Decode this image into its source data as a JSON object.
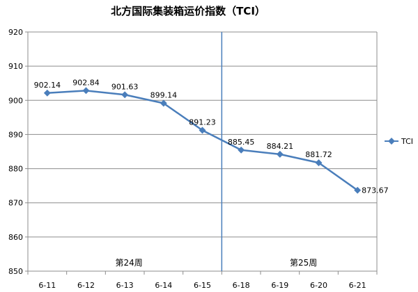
{
  "chart_data": {
    "type": "line",
    "title": "北方国际集装箱运价指数（TCI）",
    "categories": [
      "6-11",
      "6-12",
      "6-13",
      "6-14",
      "6-15",
      "6-18",
      "6-19",
      "6-20",
      "6-21"
    ],
    "series": [
      {
        "name": "TCI",
        "values": [
          902.14,
          902.84,
          901.63,
          899.14,
          891.23,
          885.45,
          884.21,
          881.72,
          873.67
        ],
        "color": "#4a7ebb",
        "labels": [
          "902.14",
          "902.84",
          "901.63",
          "899.14",
          "891.23",
          "885.45",
          "884.21",
          "881.72",
          "873.67"
        ]
      }
    ],
    "yticks": [
      "850",
      "860",
      "870",
      "880",
      "890",
      "900",
      "910",
      "920"
    ],
    "ylim": [
      850,
      920
    ],
    "grid": true,
    "legend": "right",
    "week_labels": [
      "第24周",
      "第25周"
    ],
    "divider_after_category": "6-15"
  }
}
